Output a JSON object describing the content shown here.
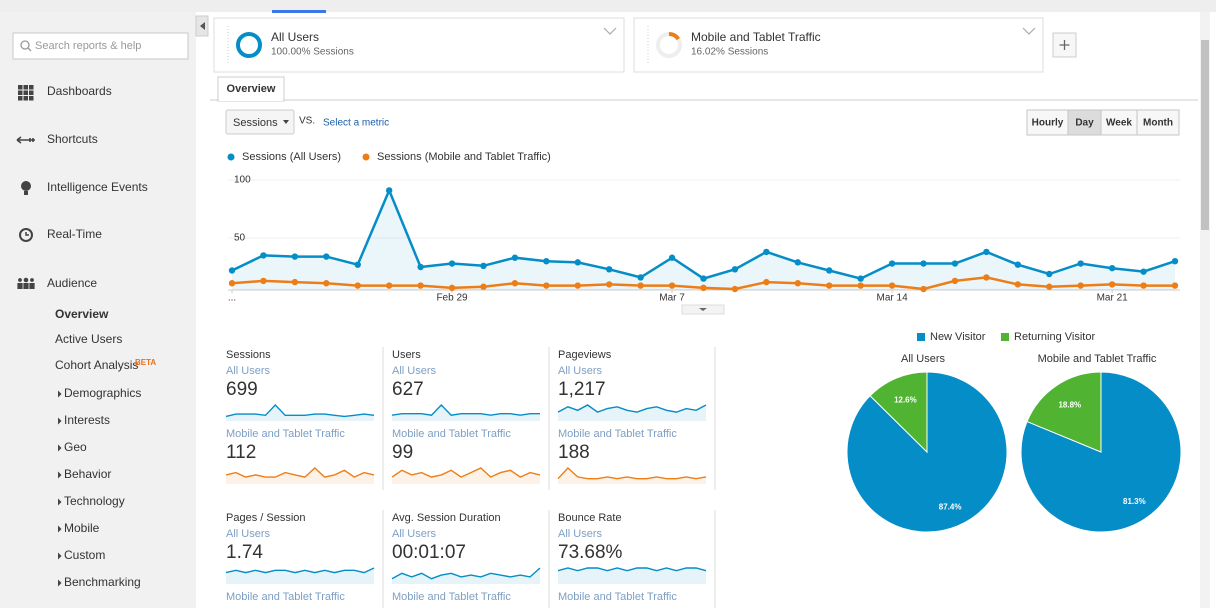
{
  "search": {
    "placeholder": "Search reports & help"
  },
  "nav": [
    "Dashboards",
    "Shortcuts",
    "Intelligence Events",
    "Real-Time",
    "Audience"
  ],
  "audience_menu": {
    "items": [
      "Overview",
      "Active Users",
      "Cohort Analysis",
      "Demographics",
      "Interests",
      "Geo",
      "Behavior",
      "Technology",
      "Mobile",
      "Custom",
      "Benchmarking"
    ],
    "beta_badge": "BETA"
  },
  "segments": [
    {
      "name": "All Users",
      "detail": "100.00% Sessions"
    },
    {
      "name": "Mobile and Tablet Traffic",
      "detail": "16.02% Sessions"
    }
  ],
  "tabs": [
    "Overview"
  ],
  "controls": {
    "metric": "Sessions",
    "vs": "VS.",
    "compare": "Select a metric",
    "granularity": [
      "Hourly",
      "Day",
      "Week",
      "Month"
    ]
  },
  "chart_data": [
    {
      "type": "line",
      "categories": [
        "...",
        null,
        null,
        null,
        null,
        null,
        null,
        "Feb 29",
        null,
        null,
        null,
        null,
        null,
        null,
        "Mar 7",
        null,
        null,
        null,
        null,
        null,
        null,
        "Mar 14",
        null,
        null,
        null,
        null,
        null,
        null,
        "Mar 21",
        null,
        null
      ],
      "series": [
        {
          "name": "Sessions (All Users)",
          "color": "#058dc7",
          "values": [
            22,
            35,
            34,
            34,
            27,
            91,
            25,
            28,
            26,
            33,
            30,
            29,
            23,
            16,
            33,
            15,
            23,
            38,
            29,
            22,
            15,
            28,
            28,
            28,
            38,
            27,
            19,
            28,
            24,
            21,
            30
          ]
        },
        {
          "name": "Sessions (Mobile and Tablet Traffic)",
          "color": "#ed7e17",
          "values": [
            11,
            13,
            12,
            11,
            9,
            9,
            9,
            7,
            8,
            11,
            9,
            9,
            10,
            9,
            9,
            7,
            6,
            12,
            11,
            9,
            9,
            9,
            6,
            13,
            16,
            10,
            8,
            9,
            10,
            9,
            9
          ]
        }
      ],
      "ylim": [
        0,
        100
      ],
      "yticks": [
        50,
        100
      ],
      "grid": true
    },
    {
      "type": "pie",
      "title": "All Users",
      "categories": [
        "New Visitor",
        "Returning Visitor"
      ],
      "colors": [
        "#058dc7",
        "#50b432"
      ],
      "values": [
        87.4,
        12.6
      ],
      "value_labels": [
        "87.4%",
        "12.6%"
      ]
    },
    {
      "type": "pie",
      "title": "Mobile and Tablet Traffic",
      "categories": [
        "New Visitor",
        "Returning Visitor"
      ],
      "colors": [
        "#058dc7",
        "#50b432"
      ],
      "values": [
        81.3,
        18.8
      ],
      "value_labels": [
        "81.3%",
        "18.8%"
      ]
    }
  ],
  "metrics": [
    {
      "title": "Sessions",
      "rows": [
        {
          "segment": "All Users",
          "value": 699,
          "trend": [
            4,
            6,
            6,
            6,
            5,
            14,
            5,
            5,
            5,
            6,
            6,
            5,
            4,
            5,
            6,
            5
          ]
        },
        {
          "segment": "Mobile and Tablet Traffic",
          "value": 112,
          "trend": [
            4,
            5,
            3,
            4,
            3,
            3,
            5,
            4,
            3,
            7,
            3,
            4,
            6,
            3,
            5,
            4
          ]
        }
      ]
    },
    {
      "title": "Users",
      "rows": [
        {
          "segment": "All Users",
          "value": 627,
          "trend": [
            4,
            5,
            5,
            5,
            4,
            11,
            4,
            5,
            5,
            5,
            4,
            5,
            5,
            4,
            5,
            5
          ]
        },
        {
          "segment": "Mobile and Tablet Traffic",
          "value": 99,
          "trend": [
            3,
            6,
            4,
            5,
            3,
            4,
            6,
            3,
            5,
            7,
            3,
            5,
            6,
            3,
            5,
            4
          ]
        }
      ]
    },
    {
      "title": "Pageviews",
      "rows": [
        {
          "segment": "All Users",
          "value": "1,217",
          "trend": [
            5,
            8,
            6,
            9,
            5,
            7,
            8,
            6,
            5,
            7,
            8,
            6,
            5,
            7,
            6,
            9
          ]
        },
        {
          "segment": "Mobile and Tablet Traffic",
          "value": 188,
          "trend": [
            3,
            9,
            4,
            3,
            3,
            4,
            3,
            4,
            3,
            3,
            4,
            3,
            3,
            4,
            3,
            4
          ]
        }
      ]
    },
    {
      "title": "Pages / Session",
      "rows": [
        {
          "segment": "All Users",
          "value": 1.74,
          "trend": [
            5,
            6,
            5,
            6,
            5,
            6,
            6,
            5,
            6,
            5,
            6,
            5,
            6,
            6,
            5,
            7
          ]
        },
        {
          "segment": "Mobile and Tablet Traffic"
        }
      ]
    },
    {
      "title": "Avg. Session Duration",
      "rows": [
        {
          "segment": "All Users",
          "value": "00:01:07",
          "trend": [
            3,
            6,
            4,
            6,
            3,
            5,
            6,
            4,
            5,
            4,
            6,
            5,
            4,
            5,
            4,
            9
          ]
        },
        {
          "segment": "Mobile and Tablet Traffic"
        }
      ]
    },
    {
      "title": "Bounce Rate",
      "rows": [
        {
          "segment": "All Users",
          "value": "73.68%",
          "trend": [
            5,
            6,
            5,
            6,
            6,
            5,
            6,
            5,
            6,
            6,
            5,
            6,
            5,
            6,
            6,
            5
          ]
        },
        {
          "segment": "Mobile and Tablet Traffic"
        }
      ]
    }
  ]
}
